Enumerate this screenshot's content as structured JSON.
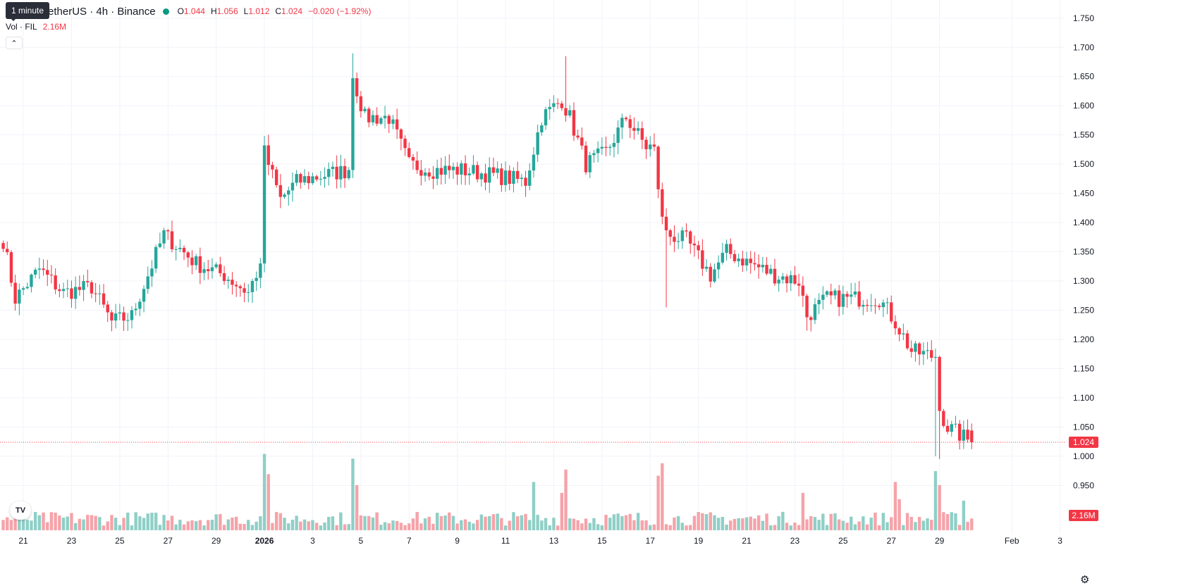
{
  "header": {
    "symbol": "etherUS · 4h · Binance",
    "ohlc": {
      "o_label": "O",
      "o": "1.044",
      "h_label": "H",
      "h": "1.056",
      "l_label": "L",
      "l": "1.012",
      "c_label": "C",
      "c": "1.024",
      "change": "−0.020 (−1.92%)"
    },
    "tooltip": "1 minute",
    "volume_label": "Vol · FIL",
    "volume_value": "2.16M",
    "collapse_icon": "chevron-up-icon"
  },
  "colors": {
    "up": "#26a69a",
    "down": "#f23645",
    "up_volume": "#8fcfc6",
    "down_volume": "#f5a3a9",
    "grid": "#f0f3fa",
    "live_dot": "#089981"
  },
  "chart_data": {
    "type": "candlestick",
    "interval": "4h",
    "y_axis": {
      "min": 0.9,
      "max": 1.78,
      "ticks": [
        1.75,
        1.7,
        1.65,
        1.6,
        1.55,
        1.5,
        1.45,
        1.4,
        1.35,
        1.3,
        1.25,
        1.2,
        1.15,
        1.1,
        1.05,
        1.0,
        0.95
      ],
      "tick_labels": [
        "1.750",
        "1.700",
        "1.650",
        "1.600",
        "1.550",
        "1.500",
        "1.450",
        "1.400",
        "1.350",
        "1.300",
        "1.250",
        "1.200",
        "1.150",
        "1.100",
        "1.050",
        "1.000",
        "0.950"
      ]
    },
    "x_axis": {
      "labels": [
        {
          "text": "21",
          "day": 1,
          "bold": false
        },
        {
          "text": "23",
          "day": 3,
          "bold": false
        },
        {
          "text": "25",
          "day": 5,
          "bold": false
        },
        {
          "text": "27",
          "day": 7,
          "bold": false
        },
        {
          "text": "29",
          "day": 9,
          "bold": false
        },
        {
          "text": "2026",
          "day": 11,
          "bold": true
        },
        {
          "text": "3",
          "day": 13,
          "bold": false
        },
        {
          "text": "5",
          "day": 15,
          "bold": false
        },
        {
          "text": "7",
          "day": 17,
          "bold": false
        },
        {
          "text": "9",
          "day": 19,
          "bold": false
        },
        {
          "text": "11",
          "day": 21,
          "bold": false
        },
        {
          "text": "13",
          "day": 23,
          "bold": false
        },
        {
          "text": "15",
          "day": 25,
          "bold": false
        },
        {
          "text": "17",
          "day": 27,
          "bold": false
        },
        {
          "text": "19",
          "day": 29,
          "bold": false
        },
        {
          "text": "21",
          "day": 31,
          "bold": false
        },
        {
          "text": "23",
          "day": 33,
          "bold": false
        },
        {
          "text": "25",
          "day": 35,
          "bold": false
        },
        {
          "text": "27",
          "day": 37,
          "bold": false
        },
        {
          "text": "29",
          "day": 39,
          "bold": false
        },
        {
          "text": "Feb",
          "day": 42,
          "bold": false
        },
        {
          "text": "3",
          "day": 44,
          "bold": false
        }
      ]
    },
    "last_price": 1.024,
    "last_price_label": "1.024",
    "last_volume_label": "2.16M",
    "volume_max": 5.2,
    "volume_unit": "M",
    "anchors": [
      [
        0,
        1.37
      ],
      [
        3,
        1.27
      ],
      [
        9,
        1.32
      ],
      [
        15,
        1.28
      ],
      [
        22,
        1.29
      ],
      [
        27,
        1.23
      ],
      [
        32,
        1.24
      ],
      [
        40,
        1.38
      ],
      [
        48,
        1.33
      ],
      [
        55,
        1.31
      ],
      [
        61,
        1.28
      ],
      [
        64,
        1.33
      ],
      [
        65,
        1.52
      ],
      [
        69,
        1.44
      ],
      [
        73,
        1.47
      ],
      [
        79,
        1.48
      ],
      [
        86,
        1.49
      ],
      [
        87,
        1.65
      ],
      [
        90,
        1.58
      ],
      [
        96,
        1.58
      ],
      [
        101,
        1.5
      ],
      [
        107,
        1.49
      ],
      [
        114,
        1.49
      ],
      [
        123,
        1.48
      ],
      [
        130,
        1.47
      ],
      [
        134,
        1.58
      ],
      [
        139,
        1.61
      ],
      [
        141,
        1.58
      ],
      [
        145,
        1.5
      ],
      [
        150,
        1.52
      ],
      [
        155,
        1.58
      ],
      [
        160,
        1.53
      ],
      [
        162,
        1.53
      ],
      [
        163,
        1.45
      ],
      [
        165,
        1.38
      ],
      [
        170,
        1.37
      ],
      [
        176,
        1.31
      ],
      [
        180,
        1.35
      ],
      [
        186,
        1.33
      ],
      [
        192,
        1.31
      ],
      [
        198,
        1.3
      ],
      [
        200,
        1.24
      ],
      [
        205,
        1.27
      ],
      [
        211,
        1.27
      ],
      [
        218,
        1.27
      ],
      [
        222,
        1.23
      ],
      [
        226,
        1.18
      ],
      [
        232,
        1.17
      ],
      [
        233,
        1.08
      ],
      [
        235,
        1.05
      ],
      [
        241,
        1.024
      ]
    ],
    "volume_spikes": [
      [
        65,
        4.9
      ],
      [
        66,
        3.6
      ],
      [
        87,
        4.6
      ],
      [
        88,
        2.9
      ],
      [
        132,
        3.1
      ],
      [
        139,
        2.4
      ],
      [
        140,
        3.9
      ],
      [
        163,
        3.5
      ],
      [
        164,
        4.3
      ],
      [
        199,
        2.4
      ],
      [
        222,
        3.1
      ],
      [
        223,
        2.0
      ],
      [
        232,
        3.8
      ],
      [
        233,
        2.9
      ],
      [
        239,
        1.9
      ]
    ]
  }
}
